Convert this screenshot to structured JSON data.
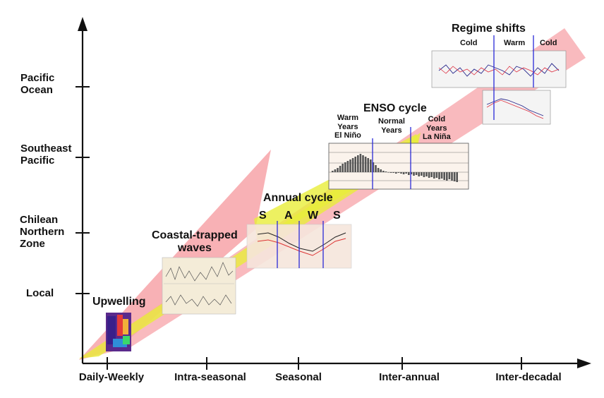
{
  "y_axis_labels": [
    {
      "text": "Pacific\nOcean"
    },
    {
      "text": "Southeast\nPacific"
    },
    {
      "text": "Chilean\nNorthern\nZone"
    },
    {
      "text": "Local"
    }
  ],
  "x_axis_labels": [
    "Daily-Weekly",
    "Intra-seasonal",
    "Seasonal",
    "Inter-annual",
    "Inter-decadal"
  ],
  "processes": {
    "upwelling": "Upwelling",
    "coastal_trapped_waves": "Coastal-trapped\nwaves",
    "annual_cycle": "Annual cycle",
    "enso_cycle": "ENSO cycle",
    "regime_shifts": "Regime shifts"
  },
  "annual_seasons": [
    "S",
    "A",
    "W",
    "S"
  ],
  "enso_phases": {
    "warm": "Warm\nYears\nEl Niño",
    "normal": "Normal\nYears",
    "cold": "Cold\nYears\nLa Niña"
  },
  "regime_phases": [
    "Cold",
    "Warm",
    "Cold"
  ],
  "colors": {
    "axis": "#111111",
    "pink_band": "#f7a3a8",
    "yellow_band": "#e9ee3a",
    "phase_line": "#2a2ad8"
  }
}
